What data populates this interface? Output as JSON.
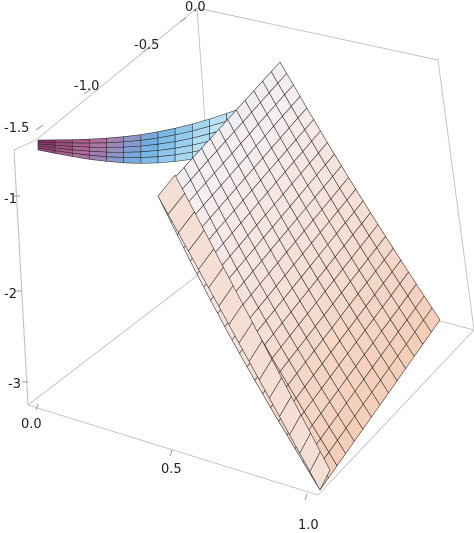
{
  "chart_data": {
    "type": "surface3d",
    "title": "",
    "x_axis": {
      "label": "",
      "ticks": [
        "0.0",
        "0.5",
        "1.0"
      ],
      "range": [
        0,
        1
      ]
    },
    "y_axis": {
      "label": "",
      "ticks": [
        "-1.5",
        "-1.0",
        "-0.5",
        "0.0"
      ],
      "range": [
        -1.6,
        0
      ]
    },
    "z_axis": {
      "label": "",
      "ticks": [
        "-1",
        "-2",
        "-3"
      ],
      "range": [
        -3.4,
        -0.6
      ]
    },
    "description_values": {
      "ridge_z_at_x0": -0.7,
      "far_trough_z_at_x0": -1.0,
      "z_at_x1": -3.3
    },
    "colormap": [
      "#7a1f4f",
      "#b56a9a",
      "#6fb3e6",
      "#bfe6f5",
      "#f7eef0",
      "#f3cdb6"
    ],
    "grid": true,
    "box": true
  }
}
